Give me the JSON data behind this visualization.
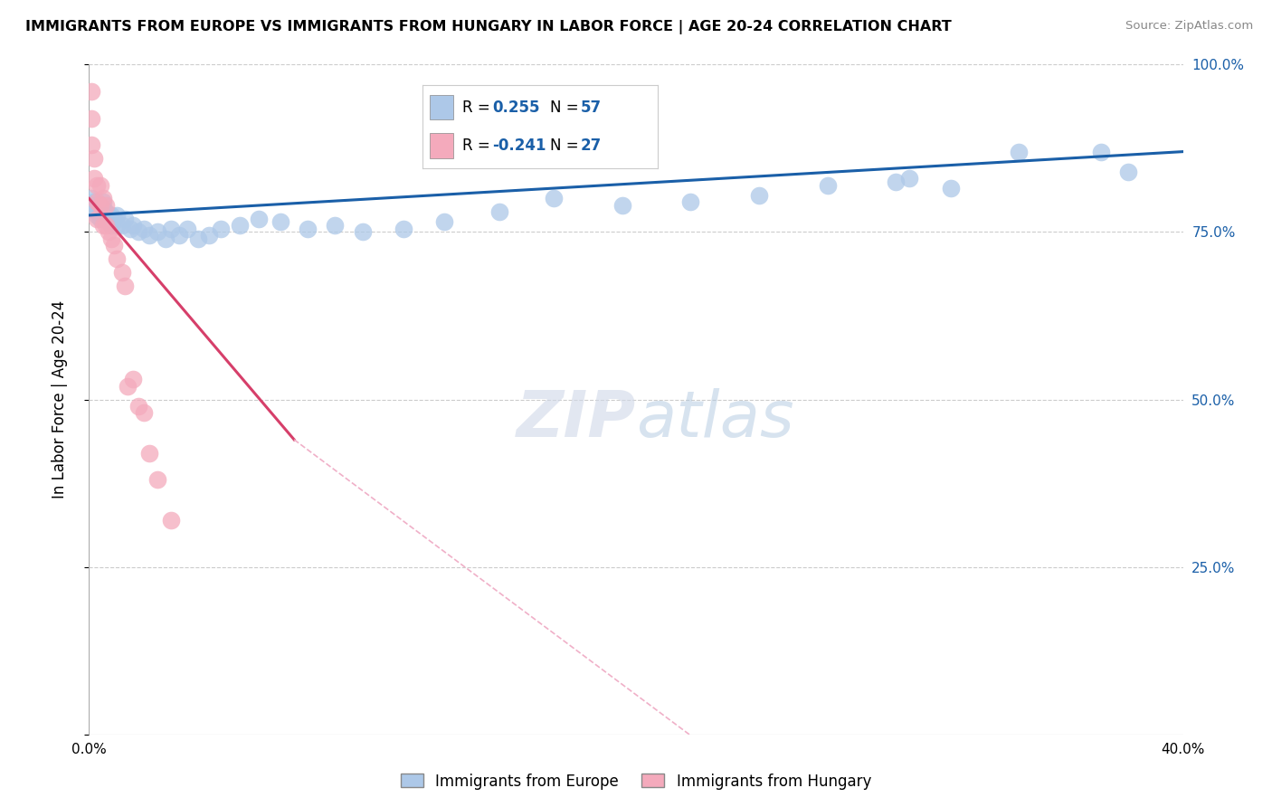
{
  "title": "IMMIGRANTS FROM EUROPE VS IMMIGRANTS FROM HUNGARY IN LABOR FORCE | AGE 20-24 CORRELATION CHART",
  "source": "Source: ZipAtlas.com",
  "ylabel": "In Labor Force | Age 20-24",
  "xlim": [
    0.0,
    0.4
  ],
  "ylim": [
    0.0,
    1.0
  ],
  "blue_R": 0.255,
  "blue_N": 57,
  "pink_R": -0.241,
  "pink_N": 27,
  "blue_color": "#adc8e8",
  "pink_color": "#f4aabc",
  "blue_line_color": "#1a5fa8",
  "pink_line_color": "#d63f6a",
  "pink_dash_color": "#f0b0c8",
  "grid_color": "#cccccc",
  "bg_color": "#ffffff",
  "blue_points_x": [
    0.001,
    0.001,
    0.002,
    0.002,
    0.003,
    0.003,
    0.003,
    0.004,
    0.004,
    0.004,
    0.005,
    0.005,
    0.005,
    0.006,
    0.006,
    0.007,
    0.007,
    0.008,
    0.008,
    0.009,
    0.01,
    0.01,
    0.012,
    0.013,
    0.015,
    0.016,
    0.018,
    0.02,
    0.022,
    0.025,
    0.028,
    0.03,
    0.033,
    0.036,
    0.04,
    0.044,
    0.048,
    0.055,
    0.062,
    0.07,
    0.08,
    0.09,
    0.1,
    0.115,
    0.13,
    0.15,
    0.17,
    0.195,
    0.22,
    0.245,
    0.27,
    0.3,
    0.34,
    0.37,
    0.295,
    0.315,
    0.38
  ],
  "blue_points_y": [
    0.79,
    0.8,
    0.785,
    0.795,
    0.775,
    0.78,
    0.79,
    0.78,
    0.77,
    0.785,
    0.775,
    0.785,
    0.795,
    0.77,
    0.78,
    0.765,
    0.775,
    0.76,
    0.775,
    0.77,
    0.76,
    0.775,
    0.76,
    0.77,
    0.755,
    0.76,
    0.75,
    0.755,
    0.745,
    0.75,
    0.74,
    0.755,
    0.745,
    0.755,
    0.74,
    0.745,
    0.755,
    0.76,
    0.77,
    0.765,
    0.755,
    0.76,
    0.75,
    0.755,
    0.765,
    0.78,
    0.8,
    0.79,
    0.795,
    0.805,
    0.82,
    0.83,
    0.87,
    0.87,
    0.825,
    0.815,
    0.84
  ],
  "pink_points_x": [
    0.001,
    0.001,
    0.001,
    0.002,
    0.002,
    0.003,
    0.003,
    0.003,
    0.004,
    0.004,
    0.005,
    0.005,
    0.006,
    0.006,
    0.007,
    0.008,
    0.009,
    0.01,
    0.012,
    0.013,
    0.014,
    0.016,
    0.018,
    0.02,
    0.022,
    0.025,
    0.03
  ],
  "pink_points_y": [
    0.96,
    0.92,
    0.88,
    0.86,
    0.83,
    0.82,
    0.795,
    0.77,
    0.82,
    0.79,
    0.8,
    0.76,
    0.79,
    0.76,
    0.75,
    0.74,
    0.73,
    0.71,
    0.69,
    0.67,
    0.52,
    0.53,
    0.49,
    0.48,
    0.42,
    0.38,
    0.32
  ]
}
